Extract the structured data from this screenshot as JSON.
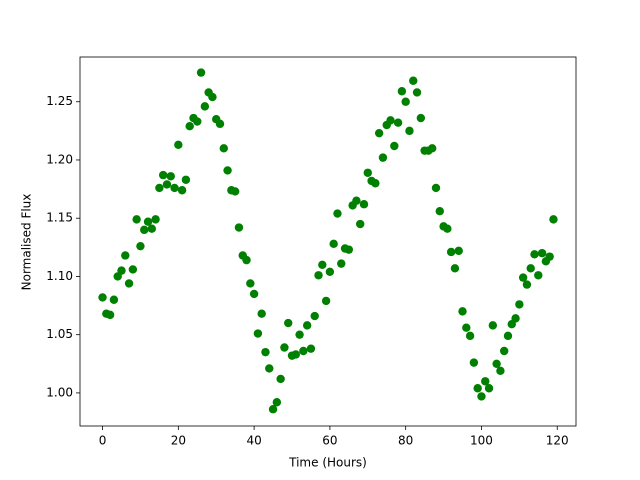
{
  "chart_data": {
    "type": "scatter",
    "x_label": "Time (Hours)",
    "y_label": "Normalised Flux",
    "series": [
      {
        "color": "#008000",
        "x": [
          0,
          1,
          2,
          3,
          4,
          5,
          6,
          7,
          8,
          9,
          10,
          11,
          12,
          13,
          14,
          15,
          16,
          17,
          18,
          19,
          20,
          21,
          22,
          23,
          24,
          25,
          26,
          27,
          28,
          29,
          30,
          31,
          32,
          33,
          34,
          35,
          36,
          37,
          38,
          39,
          40,
          41,
          42,
          43,
          44,
          45,
          46,
          47,
          48,
          49,
          50,
          51,
          52,
          53,
          54,
          55,
          56,
          57,
          58,
          59,
          60,
          61,
          62,
          63,
          64,
          65,
          66,
          67,
          68,
          69,
          70,
          71,
          72,
          73,
          74,
          75,
          76,
          77,
          78,
          79,
          80,
          81,
          82,
          83,
          84,
          85,
          86,
          87,
          88,
          89,
          90,
          91,
          92,
          93,
          94,
          95,
          96,
          97,
          98,
          99,
          100,
          101,
          102,
          103,
          104,
          105,
          106,
          107,
          108,
          109,
          110,
          111,
          112,
          113,
          114,
          115,
          116,
          117,
          118,
          119
        ],
        "values": [
          1.082,
          1.068,
          1.067,
          1.08,
          1.1,
          1.105,
          1.118,
          1.094,
          1.106,
          1.149,
          1.126,
          1.14,
          1.147,
          1.141,
          1.149,
          1.176,
          1.187,
          1.179,
          1.186,
          1.176,
          1.213,
          1.174,
          1.183,
          1.229,
          1.236,
          1.233,
          1.275,
          1.246,
          1.258,
          1.254,
          1.235,
          1.231,
          1.21,
          1.191,
          1.174,
          1.173,
          1.142,
          1.118,
          1.114,
          1.094,
          1.085,
          1.051,
          1.068,
          1.035,
          1.021,
          0.986,
          0.992,
          1.012,
          1.039,
          1.06,
          1.032,
          1.033,
          1.05,
          1.036,
          1.058,
          1.038,
          1.066,
          1.101,
          1.11,
          1.079,
          1.104,
          1.128,
          1.154,
          1.111,
          1.124,
          1.123,
          1.161,
          1.165,
          1.145,
          1.162,
          1.189,
          1.182,
          1.18,
          1.223,
          1.202,
          1.23,
          1.234,
          1.212,
          1.232,
          1.259,
          1.25,
          1.225,
          1.268,
          1.258,
          1.236,
          1.208,
          1.208,
          1.21,
          1.176,
          1.156,
          1.143,
          1.141,
          1.121,
          1.107,
          1.122,
          1.07,
          1.056,
          1.049,
          1.026,
          1.004,
          0.997,
          1.01,
          1.004,
          1.058,
          1.025,
          1.019,
          1.036,
          1.049,
          1.059,
          1.064,
          1.076,
          1.099,
          1.093,
          1.107,
          1.119,
          1.101,
          1.12,
          1.113,
          1.117,
          1.149
        ]
      }
    ],
    "xlim": [
      -5.95,
      124.95
    ],
    "xticks": [
      0,
      20,
      40,
      60,
      80,
      100,
      120
    ],
    "ylim": [
      0.9716,
      1.2884
    ],
    "yticks": [
      {
        "value": 1,
        "label": "1.00"
      },
      1.05,
      {
        "value": 1.1,
        "label": "1.10"
      },
      1.15,
      {
        "value": 1.2,
        "label": "1.20"
      },
      1.25
    ],
    "grid": false
  }
}
